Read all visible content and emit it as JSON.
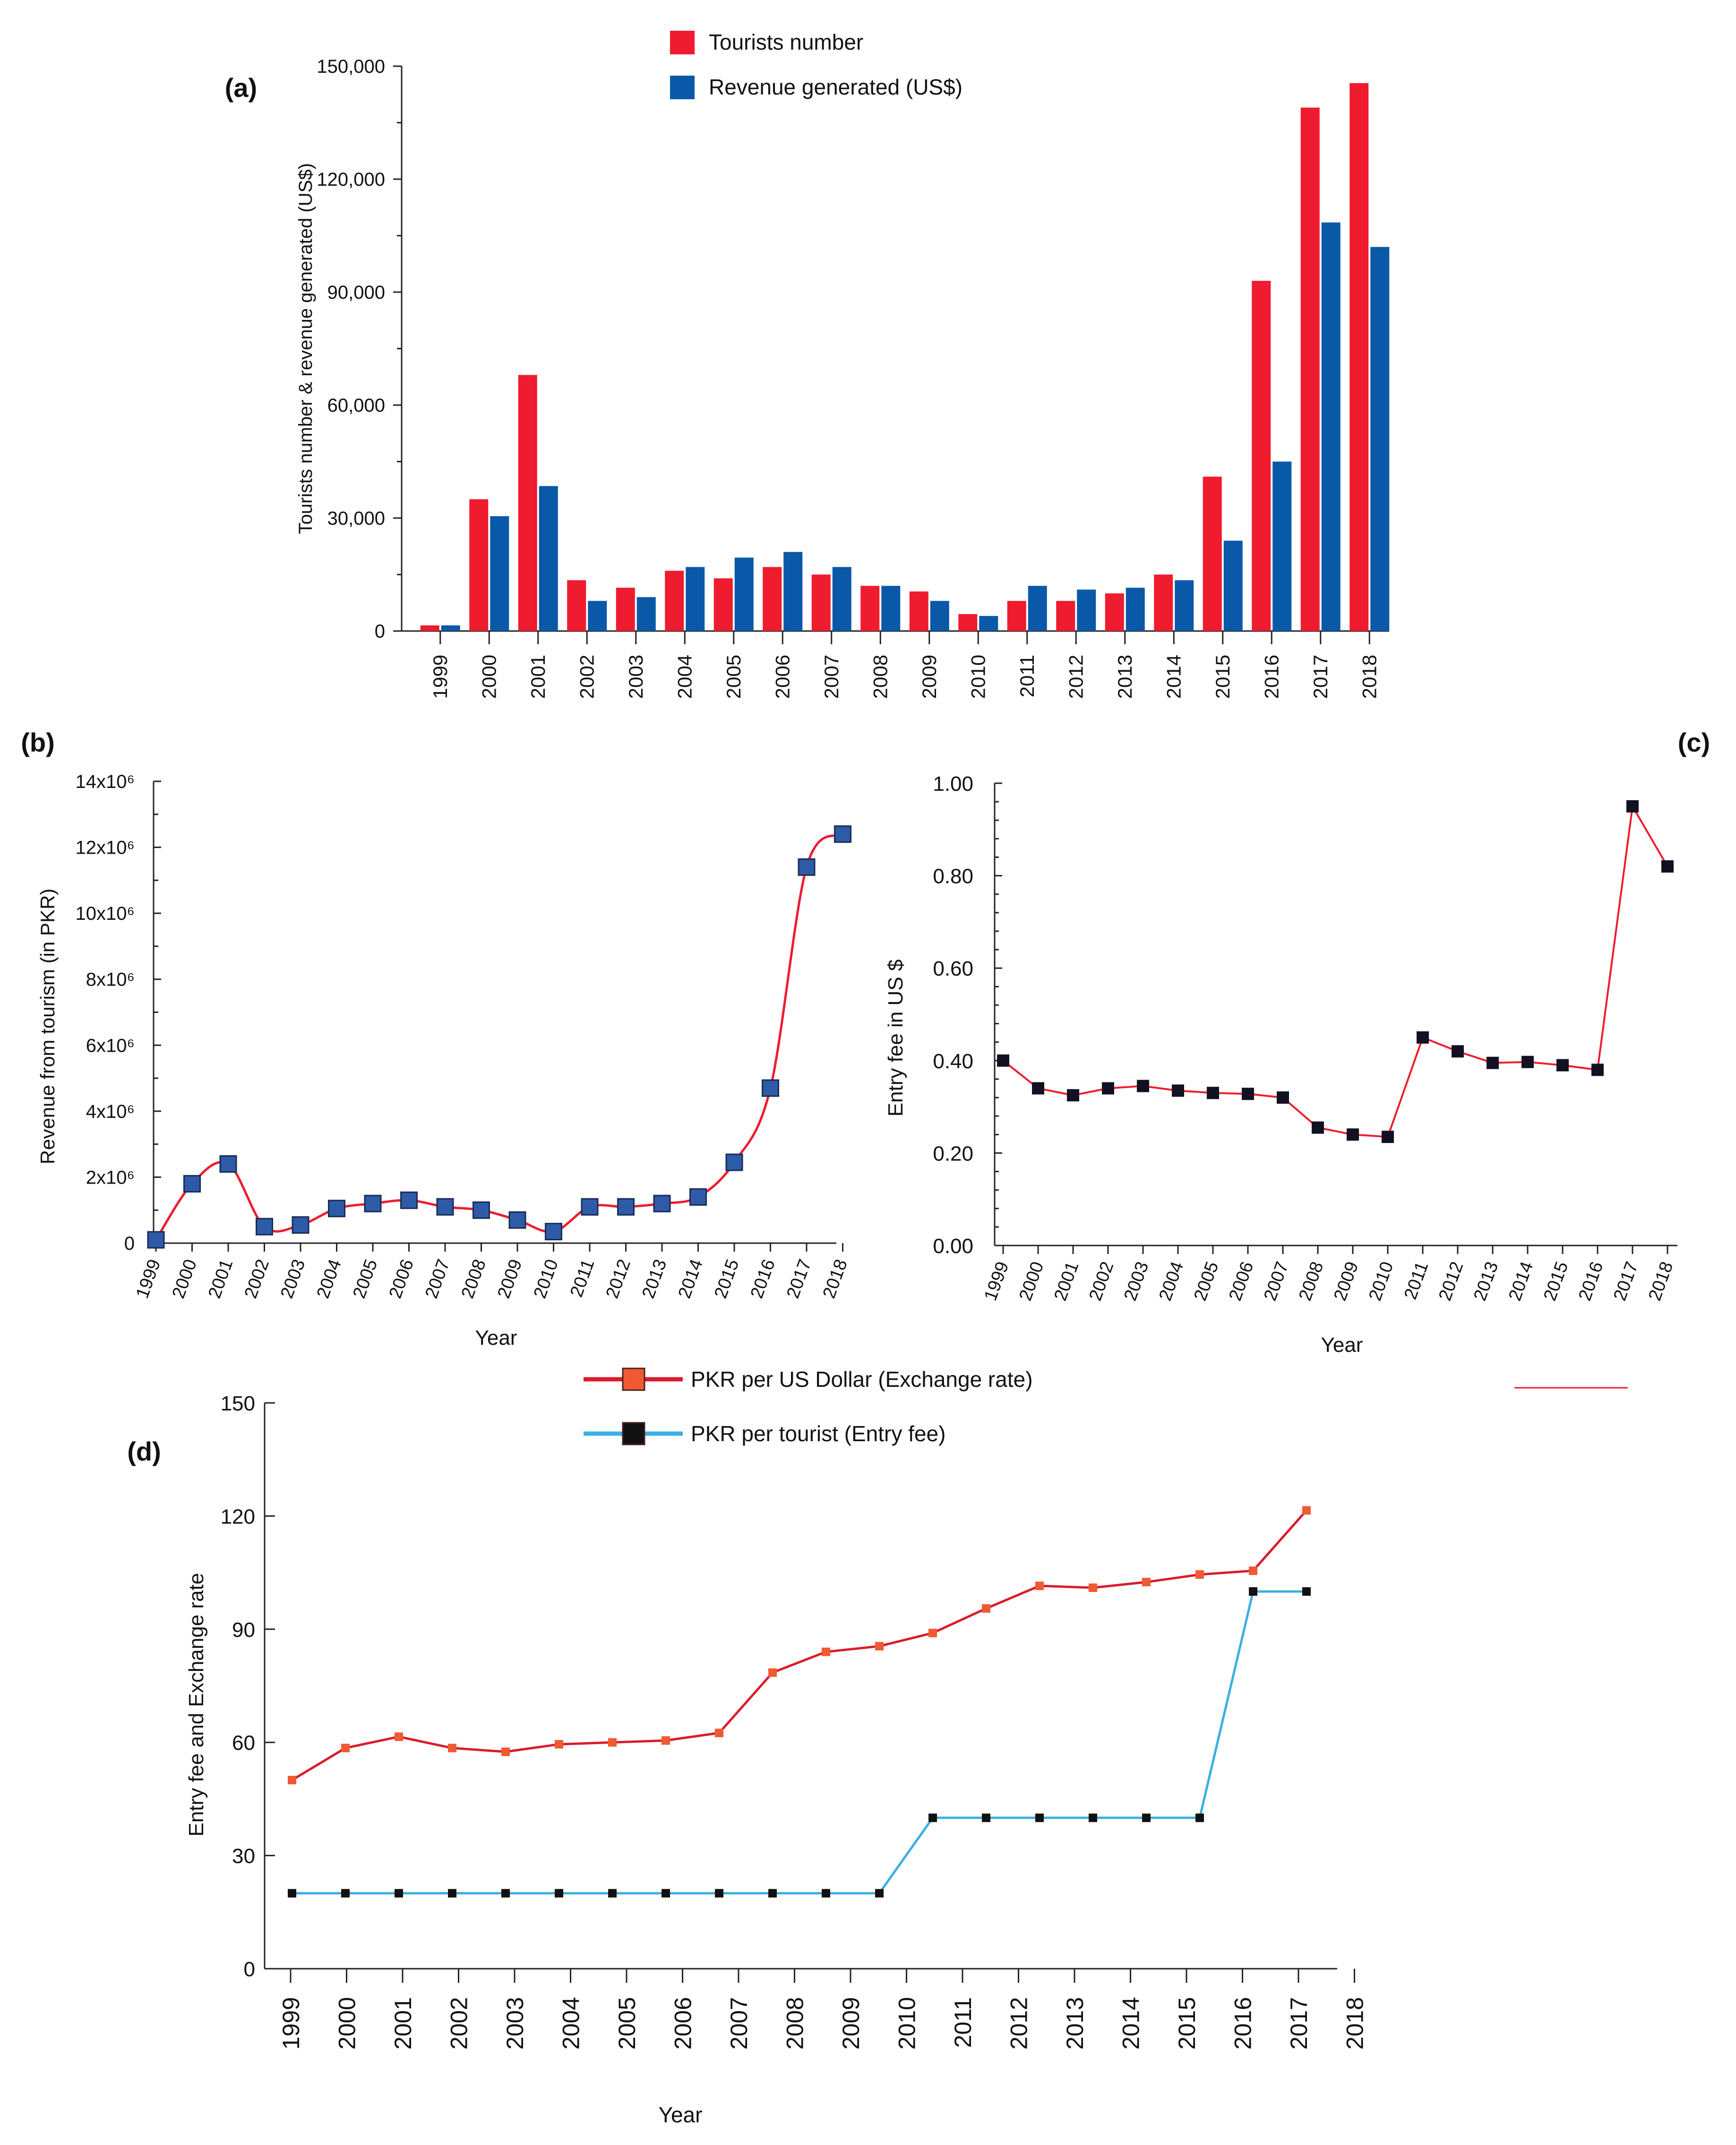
{
  "chart_data": [
    {
      "id": "a",
      "panel_label": "(a)",
      "type": "bar",
      "categories": [
        "1999",
        "2000",
        "2001",
        "2002",
        "2003",
        "2004",
        "2005",
        "2006",
        "2007",
        "2008",
        "2009",
        "2010",
        "2011",
        "2012",
        "2013",
        "2014",
        "2015",
        "2016",
        "2017",
        "2018"
      ],
      "series": [
        {
          "name": "Tourists number",
          "color": "#ee1c2e",
          "values": [
            1500,
            35000,
            68000,
            13500,
            11500,
            16000,
            14000,
            17000,
            15000,
            12000,
            10500,
            4500,
            8000,
            8000,
            10000,
            15000,
            41000,
            93000,
            139000,
            145500
          ]
        },
        {
          "name": "Revenue generated (US$)",
          "color": "#0a59a8",
          "values": [
            1500,
            30500,
            38500,
            8000,
            9000,
            17000,
            19500,
            21000,
            17000,
            12000,
            8000,
            4000,
            12000,
            11000,
            11500,
            13500,
            24000,
            45000,
            108500,
            102000
          ]
        }
      ],
      "ylabel": "Tourists number & revenue generated (US$)",
      "xlabel": "",
      "ylim": [
        0,
        150000
      ],
      "yticks": [
        0,
        30000,
        60000,
        90000,
        120000,
        150000
      ],
      "ytick_labels": [
        "0",
        "30,000",
        "60,000",
        "90,000",
        "120,000",
        "150,000"
      ],
      "legend_position": "top-center"
    },
    {
      "id": "b",
      "panel_label": "(b)",
      "type": "line",
      "x": [
        "1999",
        "2000",
        "2001",
        "2002",
        "2003",
        "2004",
        "2005",
        "2006",
        "2007",
        "2008",
        "2009",
        "2010",
        "2011",
        "2012",
        "2013",
        "2014",
        "2015",
        "2016",
        "2017",
        "2018"
      ],
      "values": [
        100000,
        1800000,
        2400000,
        500000,
        550000,
        1050000,
        1200000,
        1300000,
        1100000,
        1000000,
        700000,
        350000,
        1100000,
        1100000,
        1200000,
        1400000,
        2450000,
        4700000,
        11400000,
        12400000
      ],
      "ylabel": "Revenue from tourism (in PKR)",
      "xlabel": "Year",
      "ylim": [
        0,
        14000000
      ],
      "yticks": [
        0,
        2000000,
        4000000,
        6000000,
        8000000,
        10000000,
        12000000,
        14000000
      ],
      "ytick_labels": [
        "0",
        "2x10⁶",
        "4x10⁶",
        "6x10⁶",
        "8x10⁶",
        "10x10⁶",
        "12x10⁶",
        "14x10⁶"
      ],
      "line_color": "#ee1c2e",
      "marker_color": "#2d5ba8"
    },
    {
      "id": "c",
      "panel_label": "(c)",
      "type": "line",
      "x": [
        "1999",
        "2000",
        "2001",
        "2002",
        "2003",
        "2004",
        "2005",
        "2006",
        "2007",
        "2008",
        "2009",
        "2010",
        "2011",
        "2012",
        "2013",
        "2014",
        "2015",
        "2016",
        "2017",
        "2018"
      ],
      "values": [
        0.4,
        0.34,
        0.325,
        0.34,
        0.345,
        0.335,
        0.33,
        0.328,
        0.32,
        0.255,
        0.24,
        0.235,
        0.45,
        0.42,
        0.395,
        0.397,
        0.39,
        0.38,
        0.95,
        0.82
      ],
      "ylabel": "Entry fee in US $",
      "xlabel": "Year",
      "ylim": [
        0,
        1.0
      ],
      "yticks": [
        0,
        0.2,
        0.4,
        0.6,
        0.8,
        1.0
      ],
      "ytick_labels": [
        "0.00",
        "0.20",
        "0.40",
        "0.60",
        "0.80",
        "1.00"
      ],
      "line_color": "#ee1c2e",
      "marker_color": "#111122"
    },
    {
      "id": "d",
      "panel_label": "(d)",
      "type": "line",
      "x": [
        "1999",
        "2000",
        "2001",
        "2002",
        "2003",
        "2004",
        "2005",
        "2006",
        "2007",
        "2008",
        "2009",
        "2010",
        "2011",
        "2012",
        "2013",
        "2014",
        "2015",
        "2016",
        "2017",
        "2018"
      ],
      "series": [
        {
          "name": "PKR per US Dollar (Exchange rate)",
          "color": "#d91c2a",
          "marker_color": "#f05a32",
          "values": [
            50,
            58.5,
            61.5,
            58.5,
            57.5,
            59.5,
            60,
            60.5,
            62.5,
            78.5,
            84,
            85.5,
            89,
            95.5,
            101.5,
            101,
            102.5,
            104.5,
            105.5,
            121.5
          ]
        },
        {
          "name": "PKR per tourist (Entry fee)",
          "color": "#3ab0e0",
          "marker_color": "#111111",
          "values": [
            20,
            20,
            20,
            20,
            20,
            20,
            20,
            20,
            20,
            20,
            20,
            20,
            40,
            40,
            40,
            40,
            40,
            40,
            100,
            100
          ]
        }
      ],
      "ylabel": "Entry fee and Exchange rate",
      "xlabel": "Year",
      "ylim": [
        0,
        150
      ],
      "yticks": [
        0,
        30,
        60,
        90,
        120,
        150
      ],
      "ytick_labels": [
        "0",
        "30",
        "60",
        "90",
        "120",
        "150"
      ],
      "legend_position": "top-center"
    }
  ]
}
